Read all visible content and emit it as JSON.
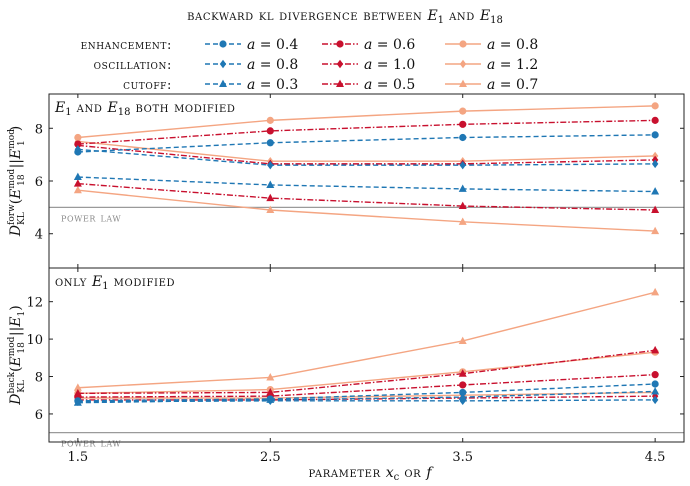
{
  "chart_data": {
    "type": "line",
    "title": "backward kl divergence between E1 and E18",
    "x": [
      1.5,
      2.5,
      3.5,
      4.5
    ],
    "xlabel": "parameter xc or f",
    "xlim": [
      1.35,
      4.65
    ],
    "xticks": [
      "1.5",
      "2.5",
      "3.5",
      "4.5"
    ],
    "legend": {
      "rows": [
        {
          "label": "enhancement:",
          "entries": [
            0,
            1,
            2
          ]
        },
        {
          "label": "oscillation:",
          "entries": [
            3,
            4,
            5
          ]
        },
        {
          "label": "cutoff:",
          "entries": [
            6,
            7,
            8
          ]
        }
      ]
    },
    "styles": [
      {
        "label": "a = 0.4",
        "color": "#1f77b4",
        "dash": "5,3",
        "marker": "circle"
      },
      {
        "label": "a = 0.6",
        "color": "#c8102e",
        "dash": "6,2,1.5,2",
        "marker": "circle"
      },
      {
        "label": "a = 0.8",
        "color": "#f4a582",
        "dash": "",
        "marker": "circle"
      },
      {
        "label": "a = 0.8",
        "color": "#1f77b4",
        "dash": "5,3",
        "marker": "diamond"
      },
      {
        "label": "a = 1.0",
        "color": "#c8102e",
        "dash": "6,2,1.5,2",
        "marker": "diamond"
      },
      {
        "label": "a = 1.2",
        "color": "#f4a582",
        "dash": "",
        "marker": "diamond"
      },
      {
        "label": "a = 0.3",
        "color": "#1f77b4",
        "dash": "5,3",
        "marker": "triangle"
      },
      {
        "label": "a = 0.5",
        "color": "#c8102e",
        "dash": "6,2,1.5,2",
        "marker": "triangle"
      },
      {
        "label": "a = 0.7",
        "color": "#f4a582",
        "dash": "",
        "marker": "triangle"
      }
    ],
    "panels": [
      {
        "title": "E1 and E18 both modified",
        "ylabel": "D_KL^forw (E18^mod || E1^mod)",
        "ylim": [
          2.7,
          9.3
        ],
        "yticks": [
          4,
          6,
          8
        ],
        "reference": {
          "label": "power law",
          "value": 5.0
        },
        "series": [
          [
            7.1,
            7.45,
            7.65,
            7.75
          ],
          [
            7.4,
            7.9,
            8.15,
            8.3
          ],
          [
            7.65,
            8.3,
            8.65,
            8.85
          ],
          [
            7.2,
            6.6,
            6.6,
            6.65
          ],
          [
            7.35,
            6.65,
            6.65,
            6.8
          ],
          [
            7.5,
            6.75,
            6.75,
            6.95
          ],
          [
            6.15,
            5.85,
            5.7,
            5.6
          ],
          [
            5.9,
            5.35,
            5.05,
            4.9
          ],
          [
            5.65,
            4.9,
            4.45,
            4.1
          ]
        ]
      },
      {
        "title": "only E1 modified",
        "ylabel": "D_KL^back (E18^mod || E1)",
        "ylim": [
          4.5,
          13.8
        ],
        "yticks": [
          6,
          8,
          10,
          12
        ],
        "reference": {
          "label": "power law",
          "value": 5.0
        },
        "series": [
          [
            6.7,
            6.8,
            7.15,
            7.6
          ],
          [
            6.9,
            6.95,
            7.55,
            8.1
          ],
          [
            7.1,
            7.3,
            8.25,
            9.3
          ],
          [
            6.65,
            6.7,
            6.7,
            6.75
          ],
          [
            6.75,
            6.75,
            6.85,
            6.95
          ],
          [
            6.85,
            6.85,
            7.0,
            7.15
          ],
          [
            6.6,
            6.75,
            6.9,
            7.2
          ],
          [
            7.1,
            7.15,
            8.15,
            9.4
          ],
          [
            7.4,
            7.95,
            9.9,
            12.5
          ]
        ]
      }
    ]
  }
}
